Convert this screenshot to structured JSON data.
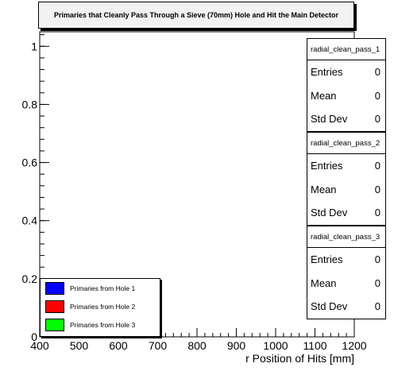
{
  "chart_data": {
    "type": "line",
    "title": "Primaries that Cleanly Pass Through a Sieve (70mm) Hole and Hit the Main Detector",
    "xlabel": "r Position of Hits [mm]",
    "ylabel": "",
    "xlim": [
      400,
      1200
    ],
    "ylim": [
      0,
      1.05
    ],
    "x_ticks": [
      400,
      500,
      600,
      700,
      800,
      900,
      1000,
      1100,
      1200
    ],
    "x_tick_labels": [
      "400",
      "500",
      "600",
      "700",
      "800",
      "900",
      "1000",
      "1100",
      "1200"
    ],
    "y_ticks": [
      0,
      0.2,
      0.4,
      0.6,
      0.8,
      1
    ],
    "y_tick_labels": [
      "0",
      "0.2",
      "0.4",
      "0.6",
      "0.8",
      "1"
    ],
    "legend_position": "bottom-left",
    "series": [
      {
        "name": "Primaries from Hole 1",
        "color": "#0000ff",
        "x": [],
        "values": []
      },
      {
        "name": "Primaries from Hole 2",
        "color": "#ff0000",
        "x": [],
        "values": []
      },
      {
        "name": "Primaries from Hole 3",
        "color": "#00ff00",
        "x": [],
        "values": []
      }
    ],
    "stats": [
      {
        "name": "radial_clean_pass_1",
        "entries_label": "Entries",
        "entries": "0",
        "mean_label": "Mean",
        "mean": "0",
        "stddev_label": "Std Dev",
        "stddev": "0"
      },
      {
        "name": "radial_clean_pass_2",
        "entries_label": "Entries",
        "entries": "0",
        "mean_label": "Mean",
        "mean": "0",
        "stddev_label": "Std Dev",
        "stddev": "0"
      },
      {
        "name": "radial_clean_pass_3",
        "entries_label": "Entries",
        "entries": "0",
        "mean_label": "Mean",
        "mean": "0",
        "stddev_label": "Std Dev",
        "stddev": "0"
      }
    ]
  }
}
